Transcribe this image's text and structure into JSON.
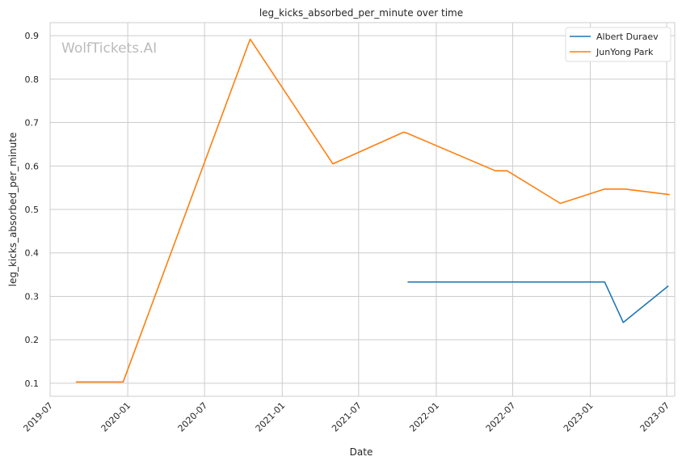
{
  "chart_data": {
    "type": "line",
    "title": "leg_kicks_absorbed_per_minute over time",
    "xlabel": "Date",
    "ylabel": "leg_kicks_absorbed_per_minute",
    "watermark": "WolfTickets.AI",
    "x_range": [
      "2019-07-01",
      "2023-07-20"
    ],
    "ylim": [
      0.07,
      0.93
    ],
    "x_ticks": [
      "2019-07",
      "2020-01",
      "2020-07",
      "2021-01",
      "2021-07",
      "2022-01",
      "2022-07",
      "2023-01",
      "2023-07"
    ],
    "y_ticks": [
      0.1,
      0.2,
      0.3,
      0.4,
      0.5,
      0.6,
      0.7,
      0.8,
      0.9
    ],
    "grid": true,
    "legend_position": "top-right",
    "series": [
      {
        "name": "Albert Duraev",
        "color": "#1f77b4",
        "points": [
          {
            "x": "2021-10-25",
            "y": 0.333
          },
          {
            "x": "2023-02-04",
            "y": 0.333
          },
          {
            "x": "2023-03-20",
            "y": 0.24
          },
          {
            "x": "2023-07-05",
            "y": 0.324
          }
        ]
      },
      {
        "name": "JunYong Park",
        "color": "#ff7f0e",
        "points": [
          {
            "x": "2019-08-31",
            "y": 0.103
          },
          {
            "x": "2019-12-21",
            "y": 0.103
          },
          {
            "x": "2020-10-17",
            "y": 0.892
          },
          {
            "x": "2021-05-01",
            "y": 0.605
          },
          {
            "x": "2021-10-16",
            "y": 0.678
          },
          {
            "x": "2021-10-23",
            "y": 0.676
          },
          {
            "x": "2022-05-21",
            "y": 0.589
          },
          {
            "x": "2022-06-18",
            "y": 0.589
          },
          {
            "x": "2022-10-22",
            "y": 0.514
          },
          {
            "x": "2023-02-04",
            "y": 0.547
          },
          {
            "x": "2023-03-25",
            "y": 0.547
          },
          {
            "x": "2023-07-08",
            "y": 0.534
          }
        ]
      }
    ]
  }
}
